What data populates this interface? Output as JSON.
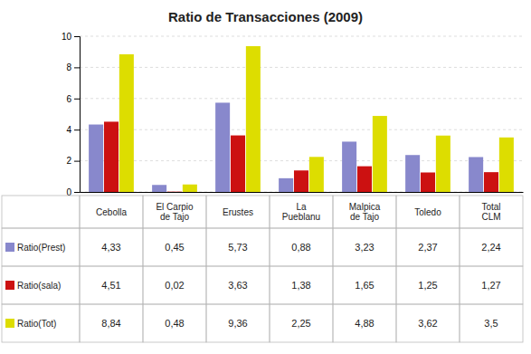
{
  "chart_data": {
    "type": "bar",
    "title": "Ratio de Transacciones (2009)",
    "categories": [
      "Cebolla",
      "El Carpio\nde Tajo",
      "Erustes",
      "La\nPueblanu",
      "Malpica\nde Tajo",
      "Toledo",
      "Total\nCLM"
    ],
    "series": [
      {
        "name": "Ratio(Prest)",
        "color": "#8888cc",
        "values": [
          4.33,
          0.45,
          5.73,
          0.88,
          3.23,
          2.37,
          2.24
        ],
        "value_labels": [
          "4,33",
          "0,45",
          "5,73",
          "0,88",
          "3,23",
          "2,37",
          "2,24"
        ]
      },
      {
        "name": "Ratio(sala)",
        "color": "#cc1111",
        "values": [
          4.51,
          0.02,
          3.63,
          1.38,
          1.65,
          1.25,
          1.27
        ],
        "value_labels": [
          "4,51",
          "0,02",
          "3,63",
          "1,38",
          "1,65",
          "1,25",
          "1,27"
        ]
      },
      {
        "name": "Ratio(Tot)",
        "color": "#dddd00",
        "values": [
          8.84,
          0.48,
          9.36,
          2.25,
          4.88,
          3.62,
          3.5
        ],
        "value_labels": [
          "8,84",
          "0,48",
          "9,36",
          "2,25",
          "4,88",
          "3,62",
          "3,5"
        ]
      }
    ],
    "ylim": [
      0,
      10
    ],
    "yticks": [
      0,
      2,
      4,
      6,
      8,
      10
    ],
    "grid": true
  }
}
